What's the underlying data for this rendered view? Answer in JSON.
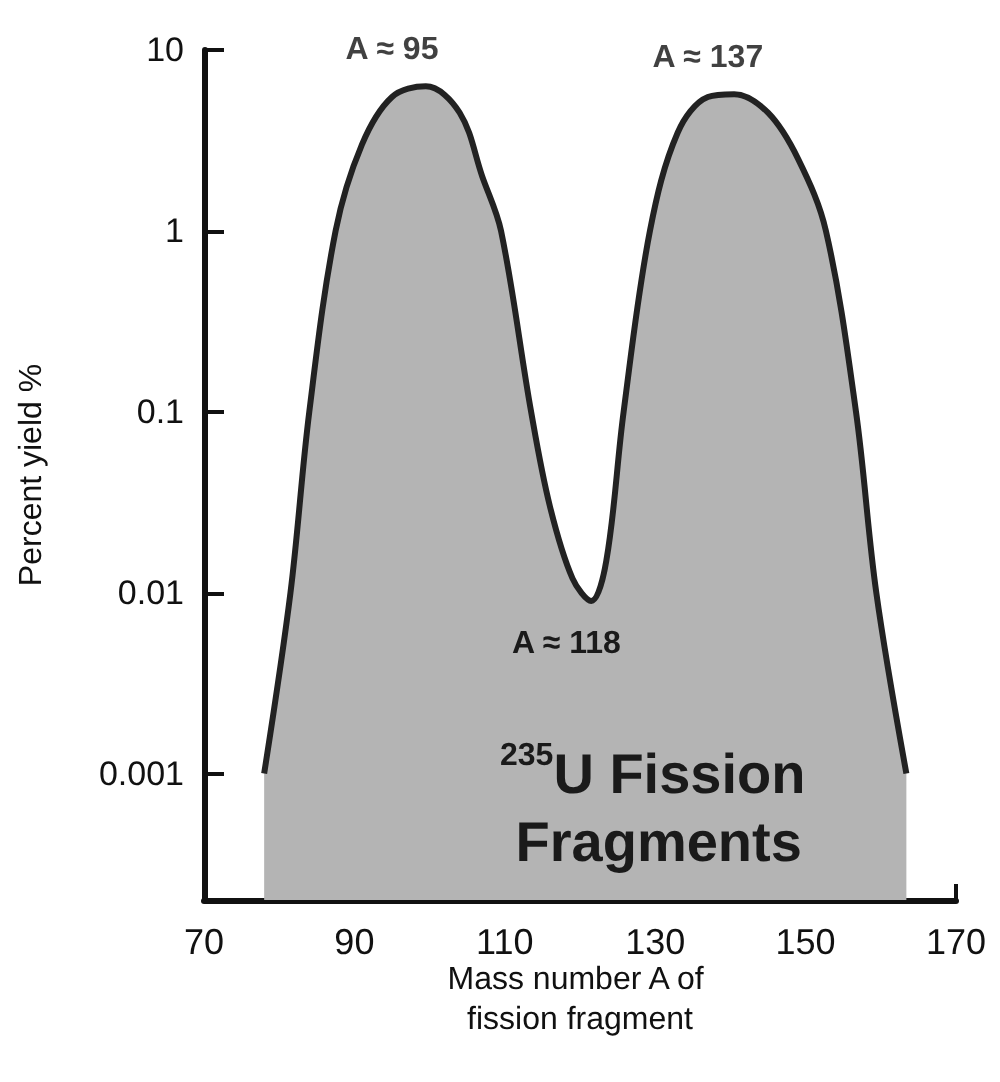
{
  "chart_data": {
    "type": "area",
    "xlabel": "Mass number A of fission fragment",
    "ylabel": "Percent yield %",
    "series": [
      {
        "color": "#b4b4b4",
        "x": [
          78,
          81.5,
          84,
          87.5,
          91,
          95,
          99.5,
          104,
          107,
          109.5,
          113.5,
          116,
          119,
          121.5,
          123.5,
          125.8,
          129.3,
          133,
          137,
          140.5,
          145,
          149,
          152.7,
          156.7,
          159.4,
          163.4
        ],
        "values": [
          0.001,
          0.01,
          0.1,
          1,
          3,
          5.5,
          6.3,
          4.5,
          2,
          1,
          0.1,
          0.03,
          0.012,
          0.009,
          0.015,
          0.1,
          1,
          3.5,
          5.5,
          5.7,
          4.5,
          2.5,
          1,
          0.1,
          0.01,
          0.001
        ]
      }
    ],
    "log": "y",
    "xlim": [
      70,
      170
    ],
    "xticks": [
      70,
      90,
      110,
      130,
      150,
      170
    ],
    "ylim": [
      0.0002,
      10
    ],
    "yticks": [
      0.001,
      0.01,
      0.1,
      1,
      10
    ],
    "grid": false,
    "annotations": [
      {
        "text": "A ≈ 95",
        "x": 95,
        "y": 6.3
      },
      {
        "text": "A ≈ 137",
        "x": 137,
        "y": 5.7
      },
      "A ≈ 118",
      "$^{235}$U Fission Fragments"
    ]
  }
}
